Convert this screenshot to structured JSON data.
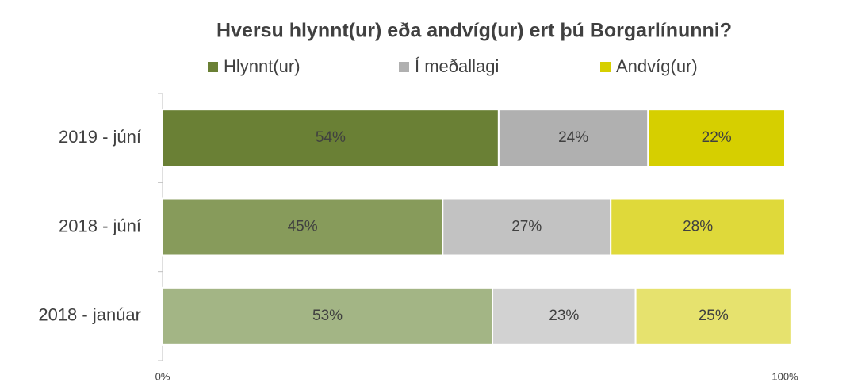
{
  "chart_data": {
    "type": "stacked-bar-horizontal",
    "title": "Hversu hlynnt(ur) eða andvíg(ur) ert þú Borgarlínunni?",
    "categories": [
      "2019 - júní",
      "2018 - júní",
      "2018 - janúar"
    ],
    "series": [
      {
        "name": "Hlynnt(ur)",
        "color": "#6a8035",
        "colors": [
          "#6a8035",
          "#879b5b",
          "#a3b585"
        ],
        "values": [
          54,
          45,
          53
        ],
        "value_labels": [
          "54%",
          "45%",
          "53%"
        ]
      },
      {
        "name": "Í meðallagi",
        "color": "#b0b0b0",
        "colors": [
          "#b0b0b0",
          "#c2c2c2",
          "#d2d2d2"
        ],
        "values": [
          24,
          27,
          23
        ],
        "value_labels": [
          "24%",
          "27%",
          "23%"
        ]
      },
      {
        "name": "Andvíg(ur)",
        "color": "#d6cf00",
        "colors": [
          "#d6cf00",
          "#dfd93a",
          "#e6e26e"
        ],
        "values": [
          22,
          28,
          25
        ],
        "value_labels": [
          "22%",
          "28%",
          "25%"
        ]
      }
    ],
    "xlim": [
      0,
      100
    ],
    "xticks": [
      {
        "value": 0,
        "label": "0%"
      },
      {
        "value": 100,
        "label": "100%"
      }
    ],
    "legend": "top"
  }
}
